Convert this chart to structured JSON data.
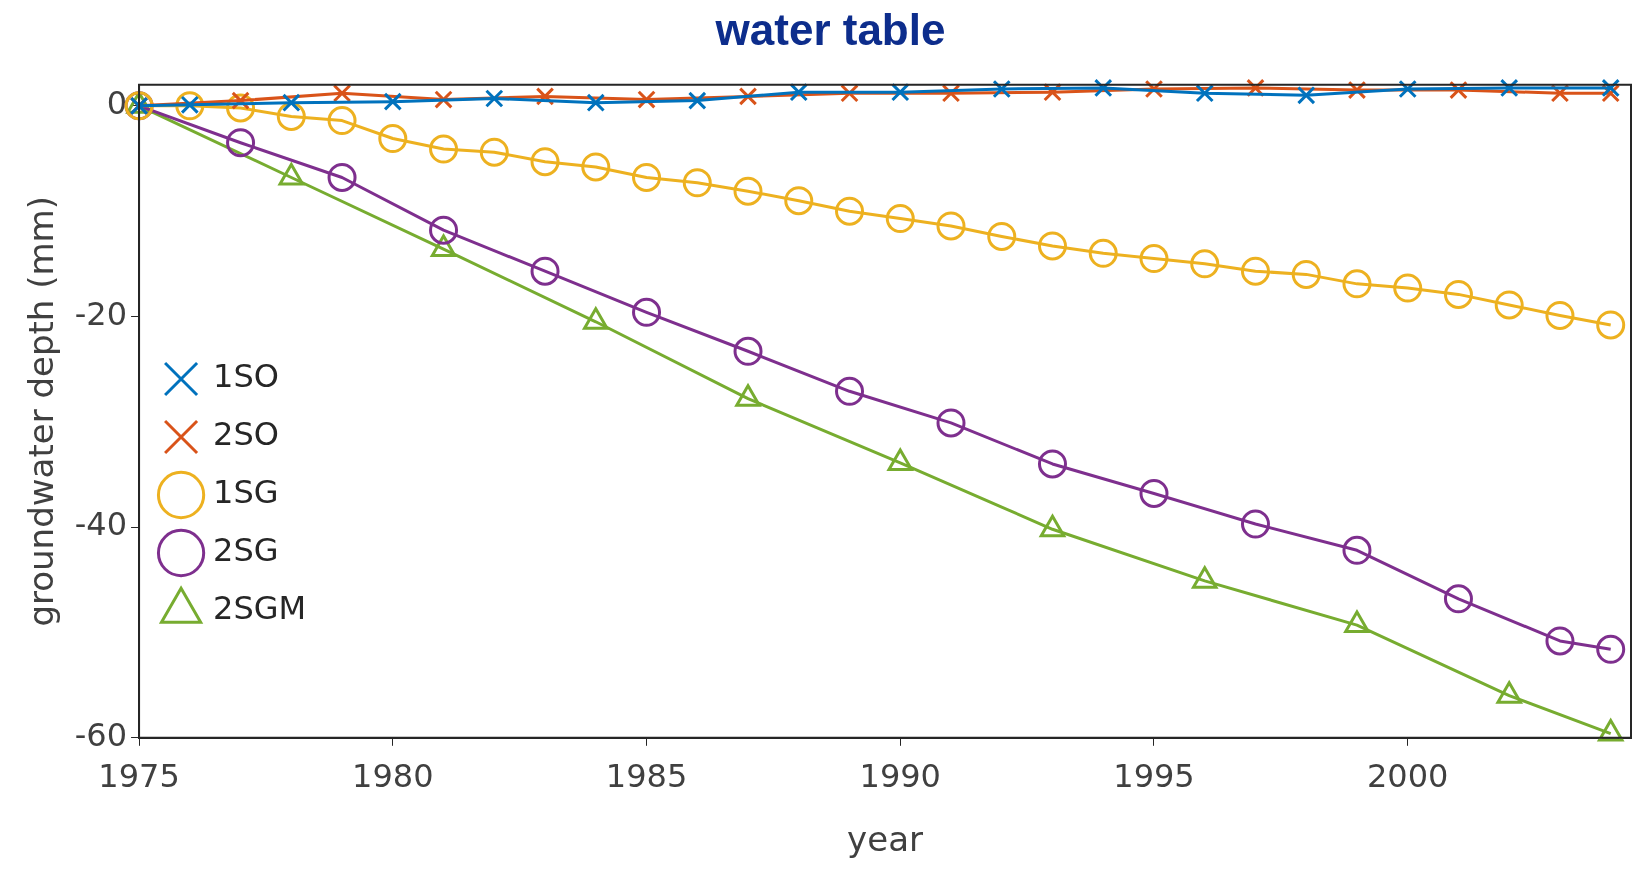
{
  "chart_data": {
    "type": "line",
    "title": "water table",
    "xlabel": "year",
    "ylabel": "groundwater depth (mm)",
    "xlim": [
      1975,
      2004.4
    ],
    "xticks": [
      1975,
      1980,
      1985,
      1990,
      1995,
      2000
    ],
    "ylim": [
      -60,
      2
    ],
    "yticks": [
      0,
      -20,
      -40,
      -60
    ],
    "grid": false,
    "legend": "bottom left",
    "line_style": "solid",
    "series": [
      {
        "name": "1SO",
        "color": "#0072bd",
        "marker": "cross",
        "x": [
          1975,
          1976,
          1978,
          1980,
          1982,
          1984,
          1986,
          1988,
          1990,
          1992,
          1994,
          1996,
          1998,
          2000,
          2002,
          2004
        ],
        "values": [
          0,
          0.1,
          0.3,
          0.4,
          0.7,
          0.3,
          0.5,
          1.3,
          1.3,
          1.6,
          1.7,
          1.2,
          1.0,
          1.6,
          1.7,
          1.7
        ]
      },
      {
        "name": "2SO",
        "color": "#d95319",
        "marker": "cross",
        "x": [
          1975,
          1977,
          1979,
          1981,
          1983,
          1985,
          1987,
          1989,
          1991,
          1993,
          1995,
          1997,
          1999,
          2001,
          2003,
          2004
        ],
        "values": [
          0,
          0.5,
          1.2,
          0.6,
          0.9,
          0.6,
          0.9,
          1.2,
          1.2,
          1.3,
          1.6,
          1.7,
          1.5,
          1.5,
          1.2,
          1.2
        ]
      },
      {
        "name": "1SG",
        "color": "#edb120",
        "marker": "circle",
        "x": [
          1975,
          1976,
          1977,
          1978,
          1979,
          1980,
          1981,
          1982,
          1983,
          1984,
          1985,
          1986,
          1987,
          1988,
          1989,
          1990,
          1991,
          1992,
          1993,
          1994,
          1995,
          1996,
          1997,
          1998,
          1999,
          2000,
          2001,
          2002,
          2003,
          2004
        ],
        "values": [
          0,
          0,
          -0.2,
          -1,
          -1.4,
          -3.1,
          -4.1,
          -4.4,
          -5.3,
          -5.8,
          -6.8,
          -7.3,
          -8.1,
          -9,
          -10,
          -10.7,
          -11.4,
          -12.4,
          -13.3,
          -14,
          -14.5,
          -15,
          -15.7,
          -16,
          -16.9,
          -17.3,
          -17.9,
          -18.9,
          -19.9,
          -20.8
        ]
      },
      {
        "name": "2SG",
        "color": "#7e2f8e",
        "marker": "circle",
        "x": [
          1975,
          1977,
          1979,
          1981,
          1983,
          1985,
          1987,
          1989,
          1991,
          1993,
          1995,
          1997,
          1999,
          2001,
          2003,
          2004
        ],
        "values": [
          0,
          -3.5,
          -6.8,
          -11.8,
          -15.7,
          -19.6,
          -23.3,
          -27.1,
          -30.1,
          -34,
          -36.8,
          -39.7,
          -42.2,
          -46.8,
          -50.8,
          -51.6
        ]
      },
      {
        "name": "2SGM",
        "color": "#77ac30",
        "marker": "triangle",
        "x": [
          1975,
          1978,
          1981,
          1984,
          1987,
          1990,
          1993,
          1996,
          1999,
          2002,
          2004
        ],
        "values": [
          0,
          -6.8,
          -13.6,
          -20.5,
          -27.8,
          -33.9,
          -40.2,
          -45.1,
          -49.3,
          -56,
          -59.6
        ]
      }
    ]
  }
}
